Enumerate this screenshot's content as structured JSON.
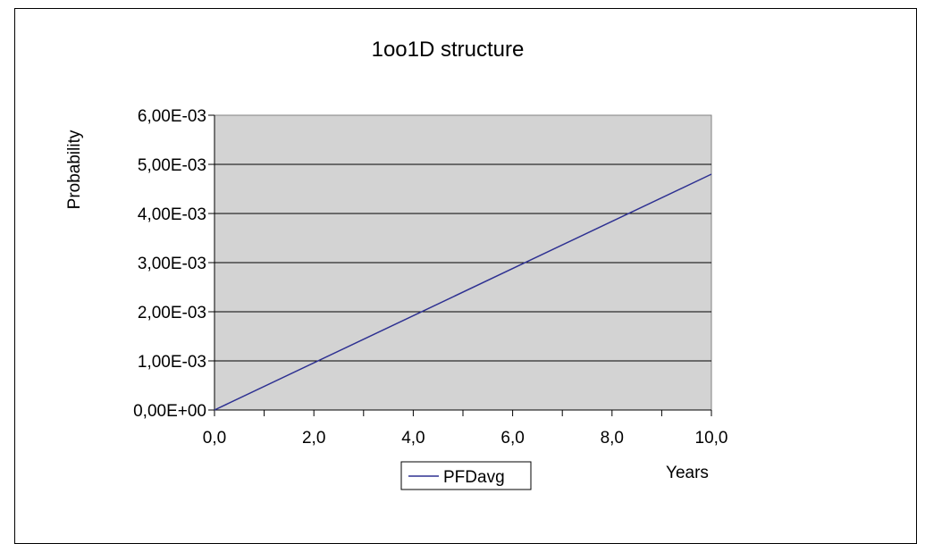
{
  "chart_data": {
    "type": "line",
    "title": "1oo1D structure",
    "xlabel": "Years",
    "ylabel": "Probability",
    "xlim": [
      0,
      10
    ],
    "ylim": [
      0,
      0.006
    ],
    "x_ticks": [
      0,
      2,
      4,
      6,
      8,
      10
    ],
    "x_tick_labels": [
      "0,0",
      "2,0",
      "4,0",
      "6,0",
      "8,0",
      "10,0"
    ],
    "x_minor_ticks": [
      0,
      1,
      2,
      3,
      4,
      5,
      6,
      7,
      8,
      9,
      10
    ],
    "y_ticks": [
      0,
      0.001,
      0.002,
      0.003,
      0.004,
      0.005,
      0.006
    ],
    "y_tick_labels": [
      "0,00E+00",
      "1,00E-03",
      "2,00E-03",
      "3,00E-03",
      "4,00E-03",
      "5,00E-03",
      "6,00E-03"
    ],
    "grid": "horizontal",
    "legend_position": "bottom-center",
    "plot_background": "#d3d3d3",
    "series": [
      {
        "name": "PFDavg",
        "color": "#2e3192",
        "x": [
          0,
          10
        ],
        "y": [
          0,
          0.0048
        ]
      }
    ]
  }
}
